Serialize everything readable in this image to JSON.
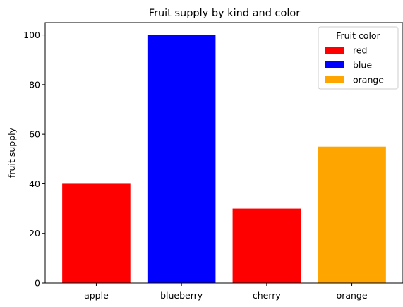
{
  "chart_data": {
    "type": "bar",
    "title": "Fruit supply by kind and color",
    "xlabel": "",
    "ylabel": "fruit supply",
    "categories": [
      "apple",
      "blueberry",
      "cherry",
      "orange"
    ],
    "values": [
      40,
      100,
      30,
      55
    ],
    "bar_labels": [
      "red",
      "blue",
      "red",
      "orange"
    ],
    "bar_colors": [
      "#ff0000",
      "#0000ff",
      "#ff0000",
      "#ffa500"
    ],
    "ylim": [
      0,
      105
    ],
    "yticks": [
      0,
      20,
      40,
      60,
      80,
      100
    ],
    "grid": false,
    "legend": {
      "title": "Fruit color",
      "placement": "top-right",
      "entries": [
        {
          "label": "red",
          "color": "#ff0000"
        },
        {
          "label": "blue",
          "color": "#0000ff"
        },
        {
          "label": "orange",
          "color": "#ffa500"
        }
      ]
    }
  }
}
